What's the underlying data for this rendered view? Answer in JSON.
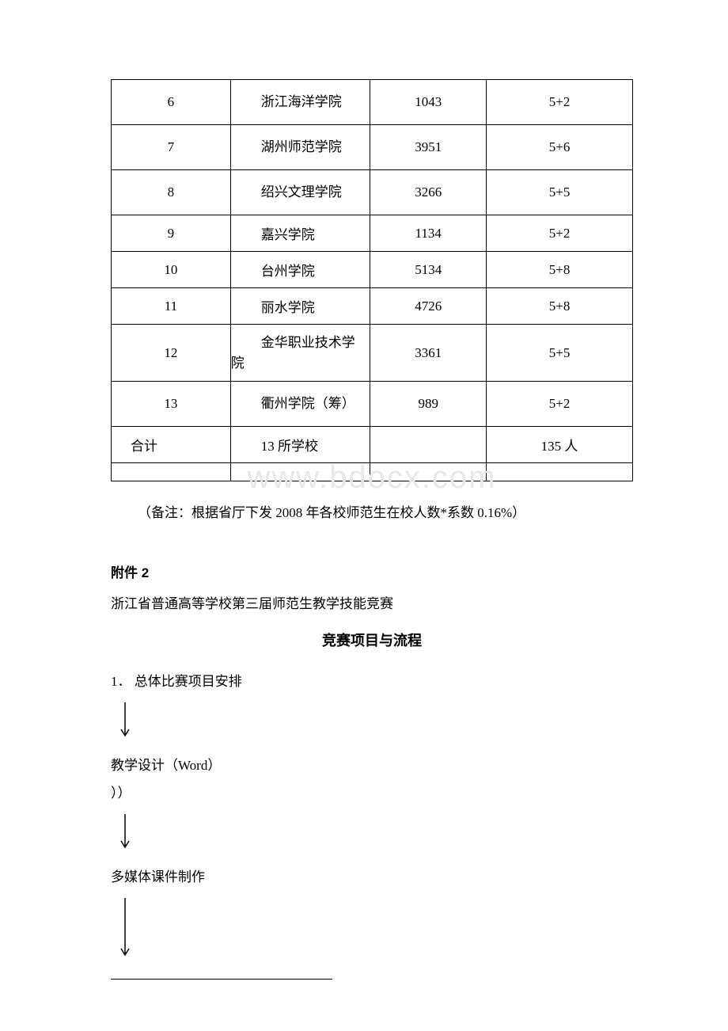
{
  "table": {
    "rows": [
      {
        "idx": "6",
        "school": "浙江海洋学院",
        "num": "1043",
        "quota": "5+2",
        "tall": true,
        "wrap": true
      },
      {
        "idx": "7",
        "school": "湖州师范学院",
        "num": "3951",
        "quota": "5+6",
        "tall": true,
        "wrap": true
      },
      {
        "idx": "8",
        "school": "绍兴文理学院",
        "num": "3266",
        "quota": "5+5",
        "tall": true,
        "wrap": true
      },
      {
        "idx": "9",
        "school": "嘉兴学院",
        "num": "1134",
        "quota": "5+2",
        "tall": false,
        "wrap": false
      },
      {
        "idx": "10",
        "school": "台州学院",
        "num": "5134",
        "quota": "5+8",
        "tall": false,
        "wrap": false
      },
      {
        "idx": "11",
        "school": "丽水学院",
        "num": "4726",
        "quota": "5+8",
        "tall": false,
        "wrap": false
      },
      {
        "idx": "12",
        "school": "金华职业技术学院",
        "num": "3361",
        "quota": "5+5",
        "tall": true,
        "wrap": true
      },
      {
        "idx": "13",
        "school": "衢州学院（筹）",
        "num": "989",
        "quota": "5+2",
        "tall": true,
        "wrap": true
      }
    ],
    "total": {
      "idx_label": "合计",
      "school": "13 所学校",
      "num": "",
      "quota": "135 人"
    }
  },
  "watermark_text": "www.bdocx.com",
  "note_text": "（备注：根据省厅下发 2008 年各校师范生在校人数*系数 0.16%）",
  "attach_label": "附件 2",
  "subtitle_text": "浙江省普通高等学校第三届师范生教学技能竞赛",
  "section_title": "竞赛项目与流程",
  "list_1": "1． 总体比赛项目安排",
  "flow_step_1": "教学设计（Word）",
  "flow_step_1b": "））",
  "flow_step_2": "多媒体课件制作"
}
